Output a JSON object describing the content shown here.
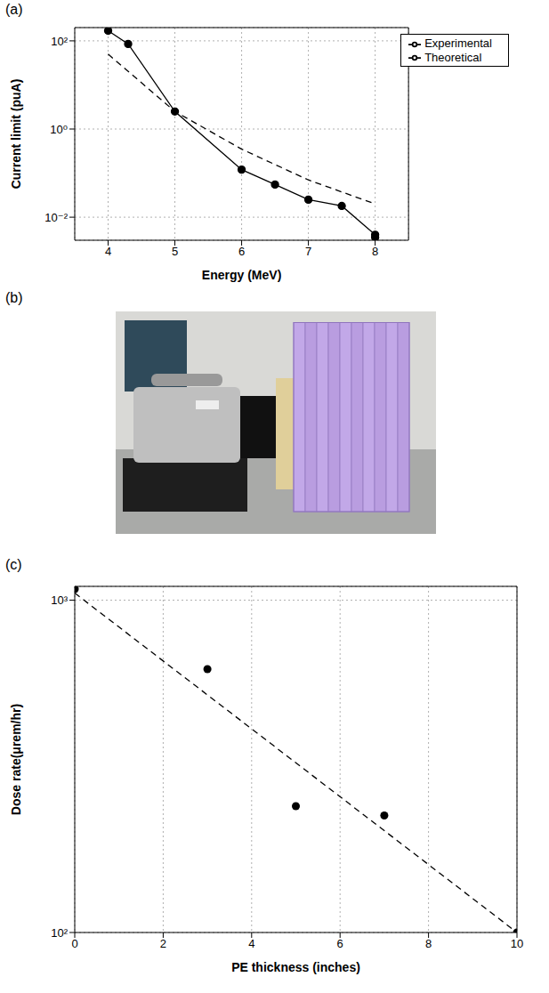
{
  "chart_data": [
    {
      "type": "line",
      "title": "(a)",
      "x_label": "Energy (MeV)",
      "y_label": "Current limit (puA)",
      "log": "y",
      "grid": true,
      "legend": "upper right",
      "xlim": [
        3.5,
        8.5
      ],
      "xticks": [
        4,
        5,
        6,
        7,
        8
      ],
      "ylim": [
        0.003,
        200
      ],
      "yticks": [
        {
          "value": 0.01,
          "label": "10⁻²"
        },
        {
          "value": 1,
          "label": "10⁰"
        },
        {
          "value": 100,
          "label": "10²"
        }
      ],
      "series": [
        {
          "name": "Experimental",
          "color": "#000000",
          "marker": "circle",
          "line_style": "solid",
          "x": [
            4,
            4.3,
            5,
            6,
            6.5,
            7,
            7.5,
            8,
            8
          ],
          "values": [
            170,
            85,
            2.5,
            0.12,
            0.055,
            0.025,
            0.018,
            0.004,
            0.0035
          ]
        },
        {
          "name": "Theoretical",
          "color": "#000000",
          "line_style": "dashed",
          "x": [
            4,
            5,
            6,
            7,
            8
          ],
          "values": [
            50,
            2.5,
            0.35,
            0.07,
            0.02
          ]
        }
      ]
    },
    {
      "type": "image",
      "title": "(b)"
    },
    {
      "type": "scatter",
      "title": "(c)",
      "x_label": "PE thickness (inches)",
      "y_label": "Dose rate(μrem/hr)",
      "log": "y",
      "grid": true,
      "xlim": [
        0,
        10
      ],
      "xticks": [
        0,
        2,
        4,
        6,
        8,
        10
      ],
      "ylim": [
        100,
        1100
      ],
      "yticks": [
        {
          "value": 100,
          "label": "10²"
        },
        {
          "value": 1000,
          "label": "10³"
        }
      ],
      "series": [
        {
          "type": "scatter",
          "color": "#000000",
          "marker": "circle",
          "x": [
            0,
            3,
            5,
            7,
            10
          ],
          "values": [
            1080,
            620,
            240,
            225,
            100
          ]
        },
        {
          "type": "line",
          "color": "#000000",
          "line_style": "dashed",
          "x": [
            0,
            10
          ],
          "values": [
            1050,
            100
          ]
        }
      ]
    }
  ]
}
